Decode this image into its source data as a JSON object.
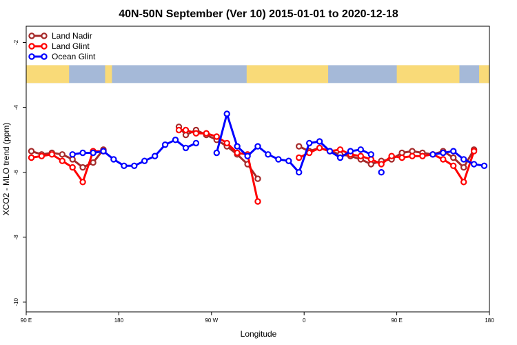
{
  "chart_data": {
    "type": "line",
    "title": "40N-50N September (Ver 10)   2015-01-01 to 2020-12-18",
    "xlabel": "Longitude",
    "ylabel": "XCO2 - MLO trend (ppm)",
    "xlim": [
      0,
      540
    ],
    "ylim": [
      -10.3,
      -1.5
    ],
    "x_ticks": [
      {
        "value": 0,
        "label": "90 E"
      },
      {
        "value": 108,
        "label": "180"
      },
      {
        "value": 216,
        "label": "90 W"
      },
      {
        "value": 324,
        "label": "0"
      },
      {
        "value": 432,
        "label": "90 E"
      },
      {
        "value": 540,
        "label": "180"
      }
    ],
    "y_ticks": [
      {
        "value": -2,
        "label": "-2"
      },
      {
        "value": -4,
        "label": "-4"
      },
      {
        "value": -6,
        "label": "-6"
      },
      {
        "value": -8,
        "label": "-8"
      },
      {
        "value": -10,
        "label": "-10"
      }
    ],
    "map_band": {
      "y_top": -2.7,
      "y_bottom": -3.25,
      "ocean_color": "#a5b9d8",
      "land_color": "#f9da78"
    },
    "legend": {
      "position": "top-left"
    },
    "series": [
      {
        "name": "Land Nadir",
        "color": "#a52a2a",
        "segments": [
          [
            [
              6,
              -5.35
            ],
            [
              18,
              -5.45
            ],
            [
              30,
              -5.4
            ],
            [
              42,
              -5.45
            ],
            [
              54,
              -5.6
            ],
            [
              66,
              -5.85
            ],
            [
              78,
              -5.7
            ],
            [
              90,
              -5.3
            ]
          ],
          [
            [
              178,
              -4.6
            ],
            [
              186,
              -4.85
            ],
            [
              198,
              -4.7
            ],
            [
              210,
              -4.85
            ],
            [
              222,
              -5.0
            ],
            [
              234,
              -5.2
            ],
            [
              246,
              -5.45
            ],
            [
              258,
              -5.75
            ],
            [
              270,
              -6.2
            ]
          ],
          [
            [
              318,
              -5.2
            ],
            [
              330,
              -5.35
            ],
            [
              342,
              -5.25
            ],
            [
              354,
              -5.35
            ],
            [
              366,
              -5.45
            ],
            [
              378,
              -5.5
            ],
            [
              390,
              -5.6
            ],
            [
              402,
              -5.75
            ],
            [
              414,
              -5.65
            ],
            [
              426,
              -5.6
            ],
            [
              438,
              -5.4
            ],
            [
              450,
              -5.35
            ],
            [
              462,
              -5.4
            ],
            [
              474,
              -5.45
            ],
            [
              486,
              -5.35
            ],
            [
              498,
              -5.55
            ],
            [
              510,
              -5.85
            ],
            [
              522,
              -5.3
            ]
          ]
        ]
      },
      {
        "name": "Land Glint",
        "color": "#ff0000",
        "segments": [
          [
            [
              6,
              -5.55
            ],
            [
              18,
              -5.5
            ],
            [
              30,
              -5.45
            ],
            [
              42,
              -5.65
            ],
            [
              54,
              -5.85
            ],
            [
              66,
              -6.3
            ],
            [
              78,
              -5.35
            ],
            [
              90,
              -5.35
            ]
          ],
          [
            [
              178,
              -4.7
            ],
            [
              186,
              -4.7
            ],
            [
              198,
              -4.8
            ],
            [
              210,
              -4.8
            ],
            [
              222,
              -4.9
            ],
            [
              234,
              -5.1
            ],
            [
              246,
              -5.4
            ],
            [
              258,
              -5.45
            ],
            [
              270,
              -6.9
            ]
          ],
          [
            [
              318,
              -5.55
            ],
            [
              330,
              -5.4
            ],
            [
              342,
              -5.25
            ],
            [
              354,
              -5.35
            ],
            [
              366,
              -5.3
            ],
            [
              378,
              -5.45
            ],
            [
              390,
              -5.5
            ],
            [
              402,
              -5.6
            ],
            [
              414,
              -5.75
            ],
            [
              426,
              -5.5
            ],
            [
              438,
              -5.55
            ],
            [
              450,
              -5.5
            ],
            [
              462,
              -5.5
            ],
            [
              474,
              -5.45
            ],
            [
              486,
              -5.6
            ],
            [
              498,
              -5.8
            ],
            [
              510,
              -6.3
            ],
            [
              522,
              -5.35
            ]
          ]
        ]
      },
      {
        "name": "Ocean Glint",
        "color": "#0000ff",
        "segments": [
          [
            [
              54,
              -5.45
            ],
            [
              66,
              -5.4
            ],
            [
              78,
              -5.4
            ],
            [
              90,
              -5.35
            ],
            [
              102,
              -5.6
            ],
            [
              114,
              -5.8
            ],
            [
              126,
              -5.8
            ],
            [
              138,
              -5.65
            ],
            [
              150,
              -5.5
            ],
            [
              162,
              -5.15
            ],
            [
              174,
              -5.0
            ],
            [
              186,
              -5.25
            ],
            [
              198,
              -5.1
            ]
          ],
          [
            [
              222,
              -5.4
            ],
            [
              234,
              -4.2
            ],
            [
              246,
              -5.2
            ],
            [
              258,
              -5.5
            ],
            [
              270,
              -5.2
            ],
            [
              282,
              -5.45
            ],
            [
              294,
              -5.6
            ],
            [
              306,
              -5.65
            ],
            [
              318,
              -6.0
            ],
            [
              330,
              -5.1
            ],
            [
              342,
              -5.05
            ],
            [
              354,
              -5.35
            ],
            [
              366,
              -5.55
            ],
            [
              378,
              -5.35
            ],
            [
              390,
              -5.3
            ],
            [
              402,
              -5.45
            ]
          ],
          [
            [
              414,
              -6.0
            ]
          ],
          [
            [
              474,
              -5.45
            ],
            [
              486,
              -5.4
            ],
            [
              498,
              -5.35
            ],
            [
              510,
              -5.6
            ],
            [
              522,
              -5.75
            ],
            [
              534,
              -5.8
            ]
          ]
        ]
      }
    ]
  }
}
